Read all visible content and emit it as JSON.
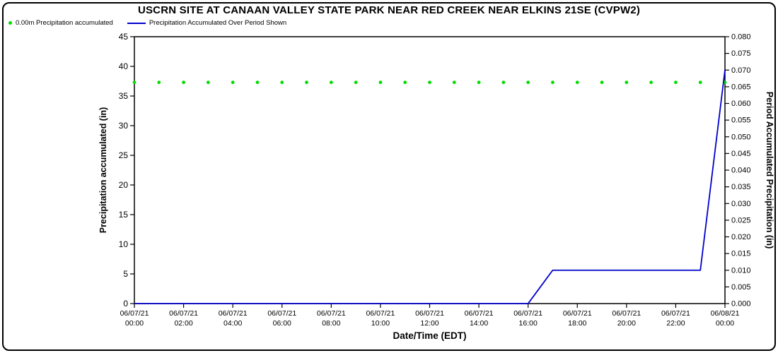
{
  "title": "USCRN SITE AT CANAAN VALLEY STATE PARK NEAR RED CREEK NEAR ELKINS 21SE (CVPW2)",
  "legend": {
    "items": [
      {
        "label": "0.00m Precipitation accumulated",
        "marker": "dot",
        "color": "#00dd00"
      },
      {
        "label": "Precipitation Accumulated Over Period Shown",
        "marker": "line",
        "color": "#0000cc"
      }
    ]
  },
  "chart_data": {
    "type": "line",
    "title": "USCRN SITE AT CANAAN VALLEY STATE PARK NEAR RED CREEK NEAR ELKINS 21SE (CVPW2)",
    "xlabel": "Date/Time (EDT)",
    "grid": false,
    "legend_position": "top-left",
    "x_axis": {
      "range_hours": [
        0,
        24
      ],
      "tick_hours": [
        0,
        2,
        4,
        6,
        8,
        10,
        12,
        14,
        16,
        18,
        20,
        22,
        24
      ],
      "tick_labels": [
        [
          "06/07/21",
          "00:00"
        ],
        [
          "06/07/21",
          "02:00"
        ],
        [
          "06/07/21",
          "04:00"
        ],
        [
          "06/07/21",
          "06:00"
        ],
        [
          "06/07/21",
          "08:00"
        ],
        [
          "06/07/21",
          "10:00"
        ],
        [
          "06/07/21",
          "12:00"
        ],
        [
          "06/07/21",
          "14:00"
        ],
        [
          "06/07/21",
          "16:00"
        ],
        [
          "06/07/21",
          "18:00"
        ],
        [
          "06/07/21",
          "20:00"
        ],
        [
          "06/07/21",
          "22:00"
        ],
        [
          "06/08/21",
          "00:00"
        ]
      ]
    },
    "y_left": {
      "label": "Precipitation accumulated (in)",
      "min": 0,
      "max": 45,
      "step": 5
    },
    "y_right": {
      "label": "Period Accumulated Precipitation (in)",
      "min": 0,
      "max": 0.08,
      "step": 0.005,
      "decimals": 3
    },
    "series": [
      {
        "name": "0.00m Precipitation accumulated",
        "axis": "left",
        "style": "dots",
        "color": "#00dd00",
        "x_hours": [
          0,
          1,
          2,
          3,
          4,
          5,
          6,
          7,
          8,
          9,
          10,
          11,
          12,
          13,
          14,
          15,
          16,
          17,
          18,
          19,
          20,
          21,
          22,
          23,
          24
        ],
        "values": [
          37.3,
          37.3,
          37.3,
          37.3,
          37.3,
          37.3,
          37.3,
          37.3,
          37.3,
          37.3,
          37.3,
          37.3,
          37.3,
          37.3,
          37.3,
          37.3,
          37.3,
          37.3,
          37.3,
          37.3,
          37.3,
          37.3,
          37.3,
          37.3,
          37.3
        ]
      },
      {
        "name": "Precipitation Accumulated Over Period Shown",
        "axis": "right",
        "style": "line",
        "color": "#0000cc",
        "points": [
          {
            "h": 0,
            "v": 0.0
          },
          {
            "h": 16,
            "v": 0.0
          },
          {
            "h": 17,
            "v": 0.01
          },
          {
            "h": 23,
            "v": 0.01
          },
          {
            "h": 24,
            "v": 0.07
          }
        ]
      }
    ]
  }
}
